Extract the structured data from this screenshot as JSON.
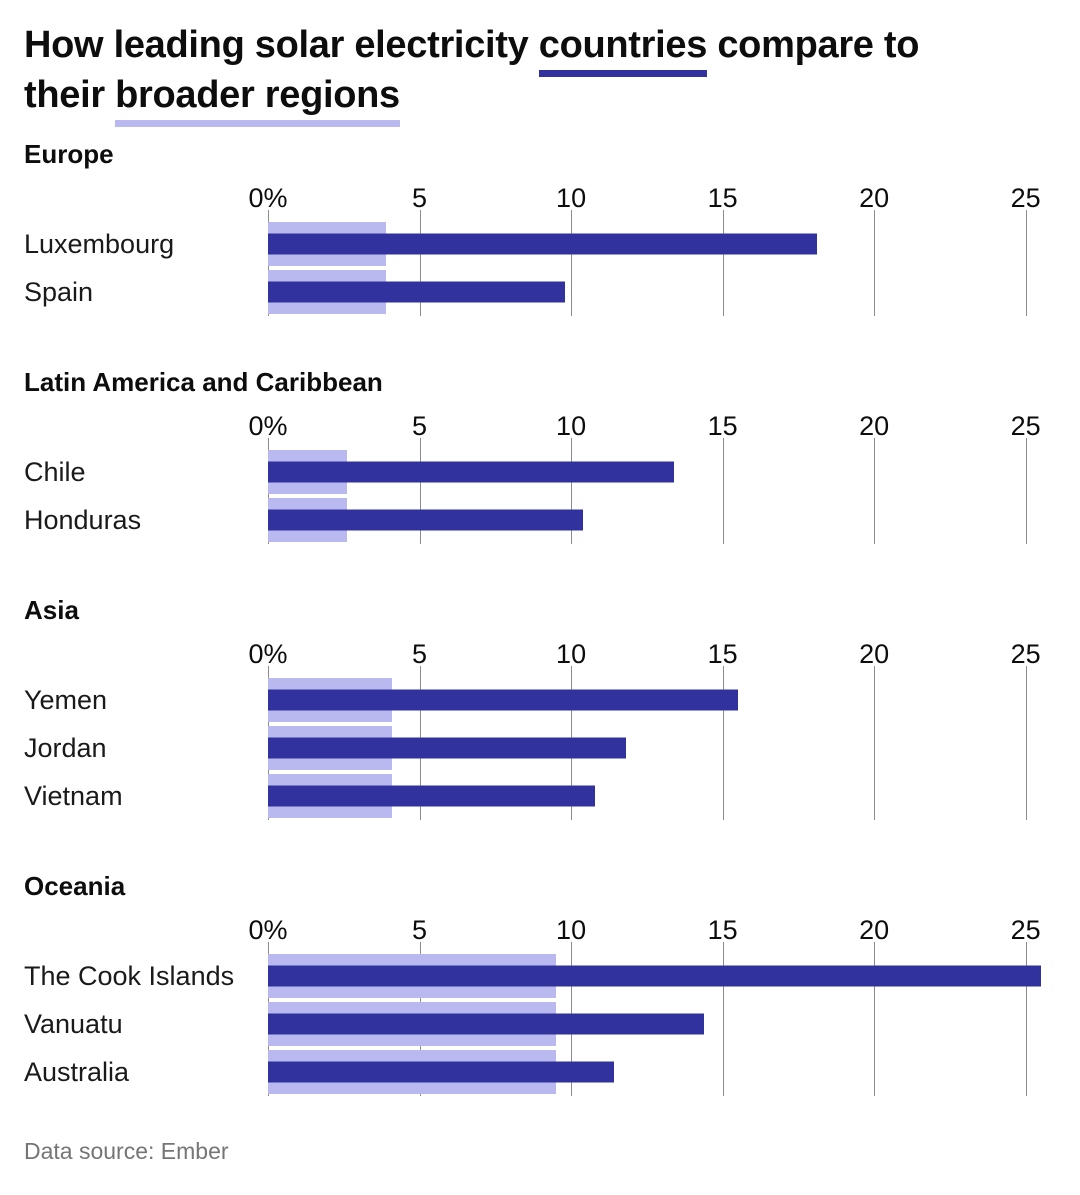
{
  "title": {
    "line1_pre": "How leading solar electricity ",
    "line1_underlined": "countries",
    "line1_post": " compare to",
    "line2_pre": "their ",
    "line2_underlined": "broader regions"
  },
  "footer": {
    "source": "Data source: Ember"
  },
  "colors": {
    "country_bar": "#32329e",
    "region_bar": "#b9b9ef",
    "gridline": "#8c8c8c"
  },
  "chart_data": {
    "type": "bar",
    "orientation": "horizontal",
    "value_unit": "%",
    "xlim": [
      0,
      26
    ],
    "ticks": [
      "0%",
      "5",
      "10",
      "15",
      "20",
      "25"
    ],
    "tick_values": [
      0,
      5,
      10,
      15,
      20,
      25
    ],
    "grid": true,
    "sections": [
      {
        "region": "Europe",
        "region_value": 3.9,
        "countries": [
          {
            "name": "Luxembourg",
            "value": 18.1
          },
          {
            "name": "Spain",
            "value": 9.8
          }
        ]
      },
      {
        "region": "Latin America and Caribbean",
        "region_value": 2.6,
        "countries": [
          {
            "name": "Chile",
            "value": 13.4
          },
          {
            "name": "Honduras",
            "value": 10.4
          }
        ]
      },
      {
        "region": "Asia",
        "region_value": 4.1,
        "countries": [
          {
            "name": "Yemen",
            "value": 15.5
          },
          {
            "name": "Jordan",
            "value": 11.8
          },
          {
            "name": "Vietnam",
            "value": 10.8
          }
        ]
      },
      {
        "region": "Oceania",
        "region_value": 9.5,
        "countries": [
          {
            "name": "The Cook Islands",
            "value": 25.5
          },
          {
            "name": "Vanuatu",
            "value": 14.4
          },
          {
            "name": "Australia",
            "value": 11.4
          }
        ]
      }
    ]
  }
}
